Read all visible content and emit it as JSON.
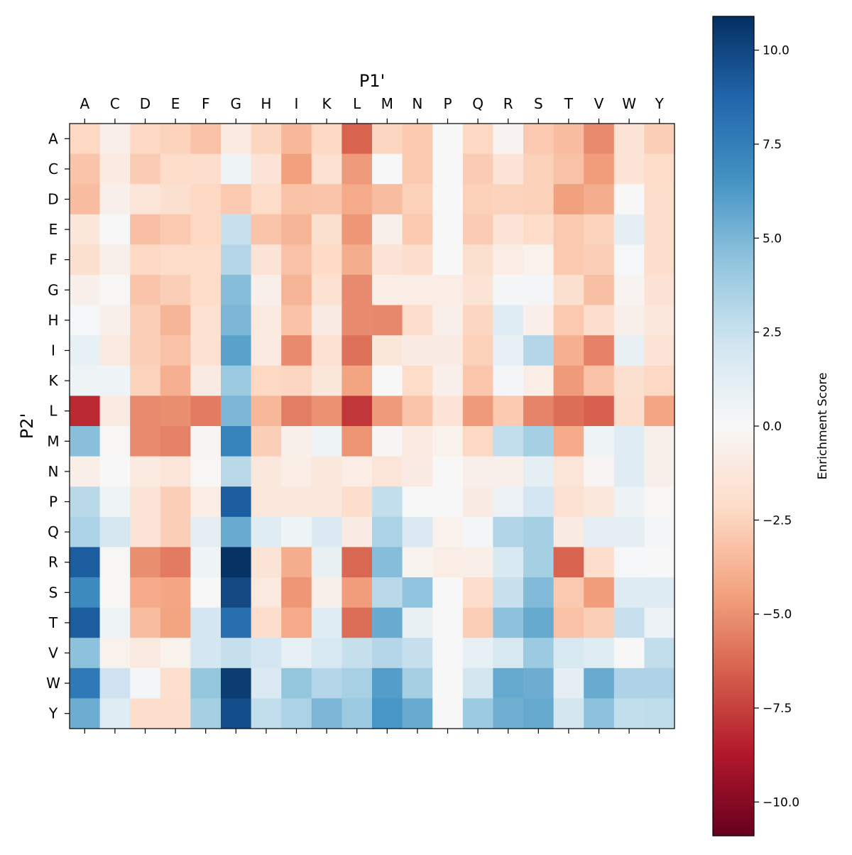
{
  "chart_data": {
    "type": "heatmap",
    "xlabel": "P1'",
    "ylabel": "P2'",
    "x_categories": [
      "A",
      "C",
      "D",
      "E",
      "F",
      "G",
      "H",
      "I",
      "K",
      "L",
      "M",
      "N",
      "P",
      "Q",
      "R",
      "S",
      "T",
      "V",
      "W",
      "Y"
    ],
    "y_categories": [
      "A",
      "C",
      "D",
      "E",
      "F",
      "G",
      "H",
      "I",
      "K",
      "L",
      "M",
      "N",
      "P",
      "Q",
      "R",
      "S",
      "T",
      "V",
      "W",
      "Y"
    ],
    "colormap": "RdBu",
    "vmin": -10.9,
    "vmax": 10.9,
    "colorbar": {
      "label": "Enrichment Score",
      "ticks": [
        10.0,
        7.5,
        5.0,
        2.5,
        0.0,
        -2.5,
        -5.0,
        -7.5,
        -10.0
      ],
      "tick_labels": [
        "10.0",
        "7.5",
        "5.0",
        "2.5",
        "0.0",
        "−2.5",
        "−5.0",
        "−7.5",
        "−10.0"
      ]
    },
    "values": [
      [
        -2.3,
        -0.7,
        -2.3,
        -2.5,
        -3.2,
        -1.1,
        -2.4,
        -3.6,
        -2.3,
        -6.4,
        -2.4,
        -2.9,
        0,
        -2.3,
        -0.3,
        -2.9,
        -3.4,
        -5.2,
        -1.5,
        -2.7
      ],
      [
        -3.1,
        -1.0,
        -2.8,
        -2.1,
        -2.0,
        0.5,
        -1.5,
        -4.5,
        -1.7,
        -4.7,
        0,
        -2.9,
        0,
        -2.8,
        -1.5,
        -2.6,
        -3.2,
        -4.6,
        -1.5,
        -2.1
      ],
      [
        -3.4,
        -0.6,
        -1.4,
        -1.8,
        -2.3,
        -2.9,
        -2.1,
        -3.2,
        -3.1,
        -4.1,
        -3.4,
        -2.6,
        0,
        -2.6,
        -2.5,
        -2.6,
        -4.5,
        -4.0,
        0,
        -2.0
      ],
      [
        -1.3,
        0,
        -3.3,
        -2.9,
        -2.3,
        2.5,
        -3.1,
        -3.7,
        -1.8,
        -4.8,
        -0.6,
        -2.9,
        0,
        -2.8,
        -1.5,
        -2.1,
        -2.9,
        -2.5,
        1.1,
        -2.0
      ],
      [
        -1.8,
        -0.6,
        -2.3,
        -2.1,
        -2.1,
        3.2,
        -1.5,
        -3.2,
        -2.2,
        -4.0,
        -1.5,
        -2.0,
        0,
        -1.8,
        -0.8,
        -0.5,
        -2.9,
        -2.7,
        0.1,
        -2.0
      ],
      [
        -0.6,
        -0.1,
        -3.1,
        -2.7,
        -2.1,
        4.7,
        -0.6,
        -3.7,
        -1.7,
        -5.2,
        -0.8,
        -0.8,
        -0.8,
        -1.5,
        0.2,
        0.2,
        -1.8,
        -3.3,
        -0.3,
        -1.6
      ],
      [
        0.1,
        -0.6,
        -2.7,
        -3.7,
        -1.7,
        5.0,
        -1.1,
        -3.2,
        -0.9,
        -5.2,
        -5.3,
        -2.0,
        -0.6,
        -2.4,
        1.3,
        -0.7,
        -2.9,
        -2.0,
        -0.6,
        -1.2
      ],
      [
        0.9,
        -1.1,
        -2.7,
        -3.2,
        -1.7,
        5.9,
        -1.0,
        -5.2,
        -1.7,
        -6.0,
        -1.3,
        -0.9,
        -0.9,
        -2.6,
        0.9,
        3.2,
        -3.9,
        -5.5,
        0.8,
        -1.5
      ],
      [
        0.5,
        0.5,
        -2.5,
        -3.9,
        -0.9,
        4.0,
        -2.3,
        -2.4,
        -1.3,
        -4.4,
        0,
        -2.1,
        -0.6,
        -3.0,
        0.2,
        -0.8,
        -4.7,
        -3.2,
        -1.8,
        -2.3
      ],
      [
        -8.2,
        -1.0,
        -5.2,
        -5.1,
        -5.7,
        5.0,
        -3.6,
        -5.6,
        -5.0,
        -7.8,
        -4.7,
        -3.1,
        -1.5,
        -4.7,
        -2.9,
        -5.4,
        -6.1,
        -6.5,
        -2.0,
        -4.3
      ],
      [
        4.6,
        -0.1,
        -5.2,
        -5.5,
        -0.2,
        7.3,
        -2.7,
        -0.6,
        0.5,
        -4.9,
        -0.2,
        -1.1,
        -0.5,
        -2.3,
        2.7,
        3.7,
        -4.1,
        0.5,
        1.3,
        -0.6
      ],
      [
        -0.7,
        0,
        -1.1,
        -1.4,
        -0.1,
        3.0,
        -1.2,
        -0.8,
        -1.2,
        -0.8,
        -1.4,
        -0.9,
        0,
        -0.6,
        -0.6,
        1.1,
        -1.4,
        -0.2,
        1.3,
        -0.6
      ],
      [
        3.0,
        0.5,
        -1.5,
        -2.7,
        -0.8,
        9.1,
        -1.2,
        -1.2,
        -1.2,
        -2.0,
        2.7,
        0,
        0,
        -0.9,
        0.7,
        2.0,
        -1.7,
        -1.2,
        0.6,
        -0.1
      ],
      [
        3.5,
        1.9,
        -1.5,
        -2.7,
        1.1,
        5.5,
        1.3,
        0.5,
        1.6,
        -0.9,
        3.5,
        1.6,
        -0.5,
        0.2,
        3.3,
        3.7,
        -0.9,
        1.1,
        1.1,
        0.2
      ],
      [
        9.1,
        -0.1,
        -5.1,
        -5.7,
        0.5,
        10.8,
        -1.5,
        -4.0,
        0.8,
        -6.3,
        4.7,
        -0.4,
        -0.8,
        -0.7,
        1.7,
        3.7,
        -6.4,
        -2.0,
        0.1,
        0
      ],
      [
        7.0,
        -0.1,
        -4.1,
        -4.3,
        0,
        9.9,
        -1.1,
        -4.8,
        -0.6,
        -4.6,
        3.0,
        4.4,
        0,
        -2.0,
        2.5,
        4.8,
        -2.9,
        -4.6,
        1.4,
        1.4
      ],
      [
        9.1,
        0.5,
        -3.4,
        -4.4,
        2.0,
        8.3,
        -2.0,
        -4.1,
        1.3,
        -6.1,
        5.5,
        0.8,
        0,
        -2.7,
        4.5,
        5.6,
        -3.2,
        -2.7,
        2.5,
        0.7
      ],
      [
        4.5,
        -0.5,
        -1.1,
        -0.5,
        2.0,
        2.6,
        2.0,
        0.9,
        1.8,
        2.6,
        3.2,
        2.6,
        0,
        0.9,
        1.8,
        4.0,
        1.8,
        1.3,
        0,
        2.7
      ],
      [
        7.8,
        2.3,
        0.2,
        -1.9,
        4.3,
        10.4,
        1.6,
        4.3,
        3.2,
        3.6,
        6.1,
        3.7,
        0,
        2.1,
        5.6,
        5.4,
        1.1,
        5.5,
        3.4,
        3.4
      ],
      [
        5.4,
        1.3,
        -2.0,
        -2.0,
        3.7,
        9.7,
        2.7,
        3.5,
        5.0,
        4.0,
        6.4,
        5.5,
        0,
        4.0,
        5.3,
        5.6,
        2.1,
        4.5,
        2.7,
        2.8
      ]
    ]
  }
}
